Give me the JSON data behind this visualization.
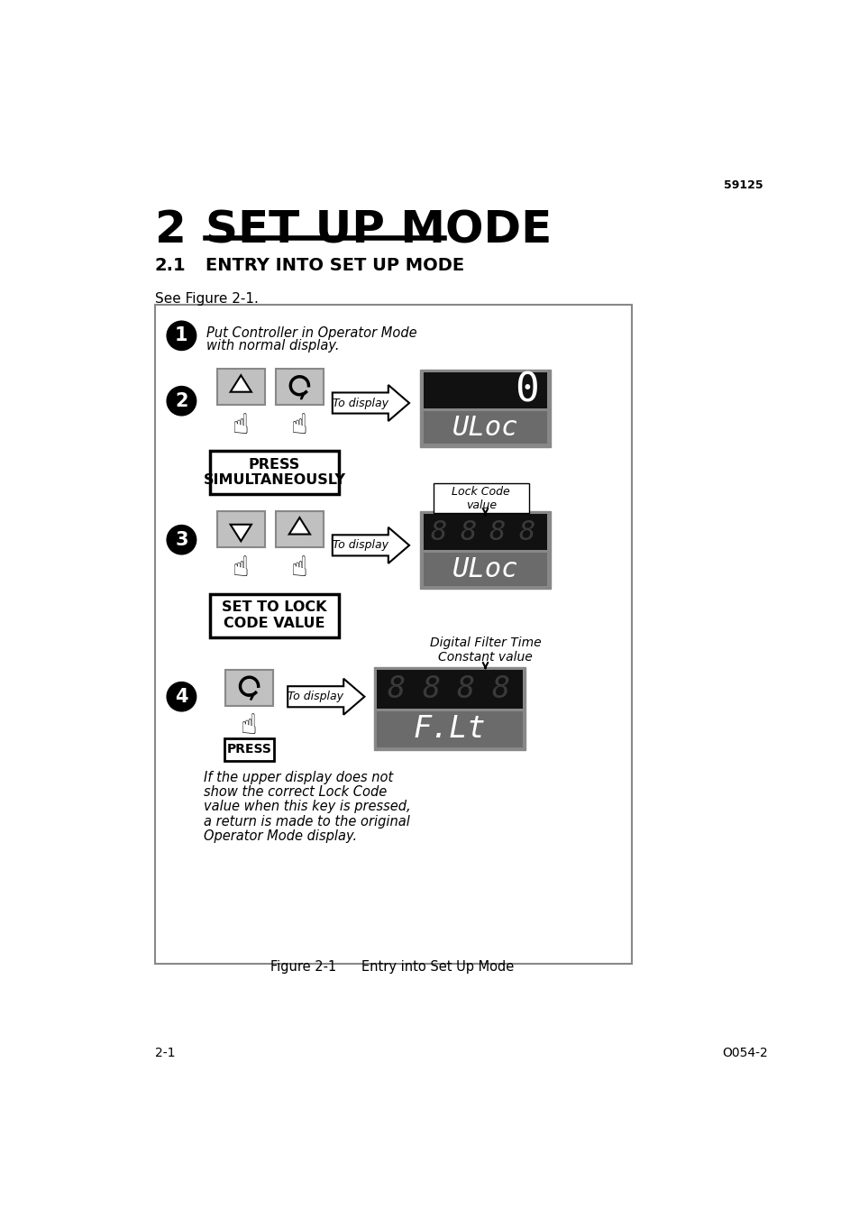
{
  "page_number_top": "59125",
  "chapter_number": "2",
  "chapter_title": "SET UP MODE",
  "section_number": "2.1",
  "section_title": "ENTRY INTO SET UP MODE",
  "see_figure": "See Figure 2-1.",
  "figure_caption": "Figure 2-1      Entry into Set Up Mode",
  "step1_text_line1": "Put Controller in Operator Mode",
  "step1_text_line2": "with normal display.",
  "press_simultaneously": "PRESS\nSIMULTANEOUSLY",
  "set_to_lock": "SET TO LOCK\nCODE VALUE",
  "press_label": "PRESS",
  "to_display": "To display",
  "lock_code_label": "Lock Code\nvalue",
  "digital_filter_label": "Digital Filter Time\nConstant value",
  "display1_top": "0",
  "display1_bottom": "ULoc",
  "display2_bottom": "ULoc",
  "display3_bottom": "F.Lt",
  "italic_note_line1": "If the upper display does not",
  "italic_note_line2": "show the correct Lock Code",
  "italic_note_line3": "value when this key is pressed,",
  "italic_note_line4": "a return is made to the original",
  "italic_note_line5": "Operator Mode display.",
  "footer_left": "2-1",
  "footer_right": "O054-2",
  "white": "#ffffff",
  "black": "#000000",
  "gray_btn": "#c0c0c0",
  "gray_border": "#888888",
  "gray_display": "#6b6b6b",
  "dark_display": "#111111",
  "seg_dim": "#3a3a3a"
}
